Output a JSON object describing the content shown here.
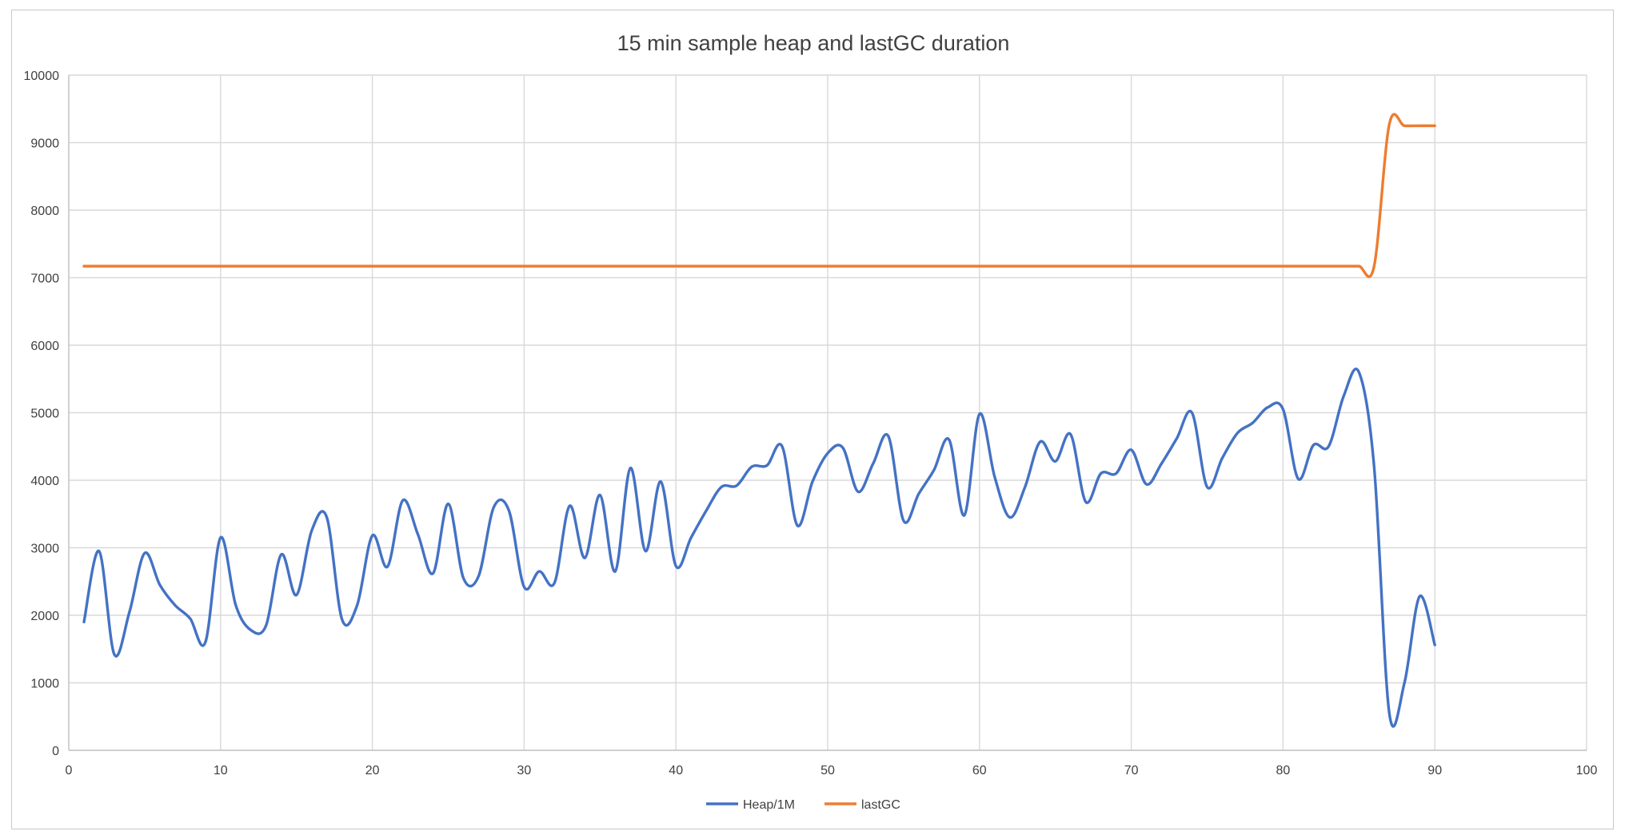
{
  "chart_data": {
    "type": "line",
    "title": "15 min sample heap and lastGC duration",
    "xlabel": "",
    "ylabel": "",
    "xlim": [
      0,
      100
    ],
    "ylim": [
      0,
      10000
    ],
    "xticks": [
      0,
      10,
      20,
      30,
      40,
      50,
      60,
      70,
      80,
      90,
      100
    ],
    "yticks": [
      0,
      1000,
      2000,
      3000,
      4000,
      5000,
      6000,
      7000,
      8000,
      9000,
      10000
    ],
    "grid": true,
    "legend_position": "bottom",
    "series": [
      {
        "name": "Heap/1M",
        "color": "#4472C4",
        "x": [
          1,
          2,
          3,
          4,
          5,
          6,
          7,
          8,
          9,
          10,
          11,
          12,
          13,
          14,
          15,
          16,
          17,
          18,
          19,
          20,
          21,
          22,
          23,
          24,
          25,
          26,
          27,
          28,
          29,
          30,
          31,
          32,
          33,
          34,
          35,
          36,
          37,
          38,
          39,
          40,
          41,
          42,
          43,
          44,
          45,
          46,
          47,
          48,
          49,
          50,
          51,
          52,
          53,
          54,
          55,
          56,
          57,
          58,
          59,
          60,
          61,
          62,
          63,
          64,
          65,
          66,
          67,
          68,
          69,
          70,
          71,
          72,
          73,
          74,
          75,
          76,
          77,
          78,
          79,
          80,
          81,
          82,
          83,
          84,
          85,
          86,
          87,
          88,
          89,
          90
        ],
        "values": [
          1900,
          2950,
          1420,
          2050,
          2920,
          2450,
          2150,
          1950,
          1600,
          3150,
          2150,
          1780,
          1850,
          2900,
          2300,
          3250,
          3450,
          1940,
          2150,
          3180,
          2720,
          3700,
          3200,
          2620,
          3650,
          2550,
          2580,
          3600,
          3550,
          2420,
          2650,
          2480,
          3620,
          2850,
          3780,
          2650,
          4180,
          2950,
          3980,
          2730,
          3150,
          3550,
          3900,
          3920,
          4200,
          4220,
          4500,
          3330,
          3980,
          4400,
          4480,
          3830,
          4250,
          4650,
          3400,
          3800,
          4150,
          4600,
          3480,
          4980,
          4050,
          3450,
          3900,
          4570,
          4280,
          4680,
          3680,
          4100,
          4100,
          4450,
          3940,
          4250,
          4620,
          5000,
          3900,
          4330,
          4700,
          4850,
          5080,
          5050,
          4020,
          4520,
          4500,
          5250,
          5600,
          4200,
          550,
          1000,
          2280,
          1560
        ]
      },
      {
        "name": "lastGC",
        "color": "#ED7D31",
        "x": [
          1,
          10,
          20,
          30,
          40,
          50,
          60,
          70,
          80,
          84,
          85,
          86,
          87,
          88,
          89,
          90
        ],
        "values": [
          7170,
          7170,
          7170,
          7170,
          7170,
          7170,
          7170,
          7170,
          7170,
          7170,
          7170,
          7170,
          9270,
          9250,
          9250,
          9250
        ]
      }
    ]
  }
}
